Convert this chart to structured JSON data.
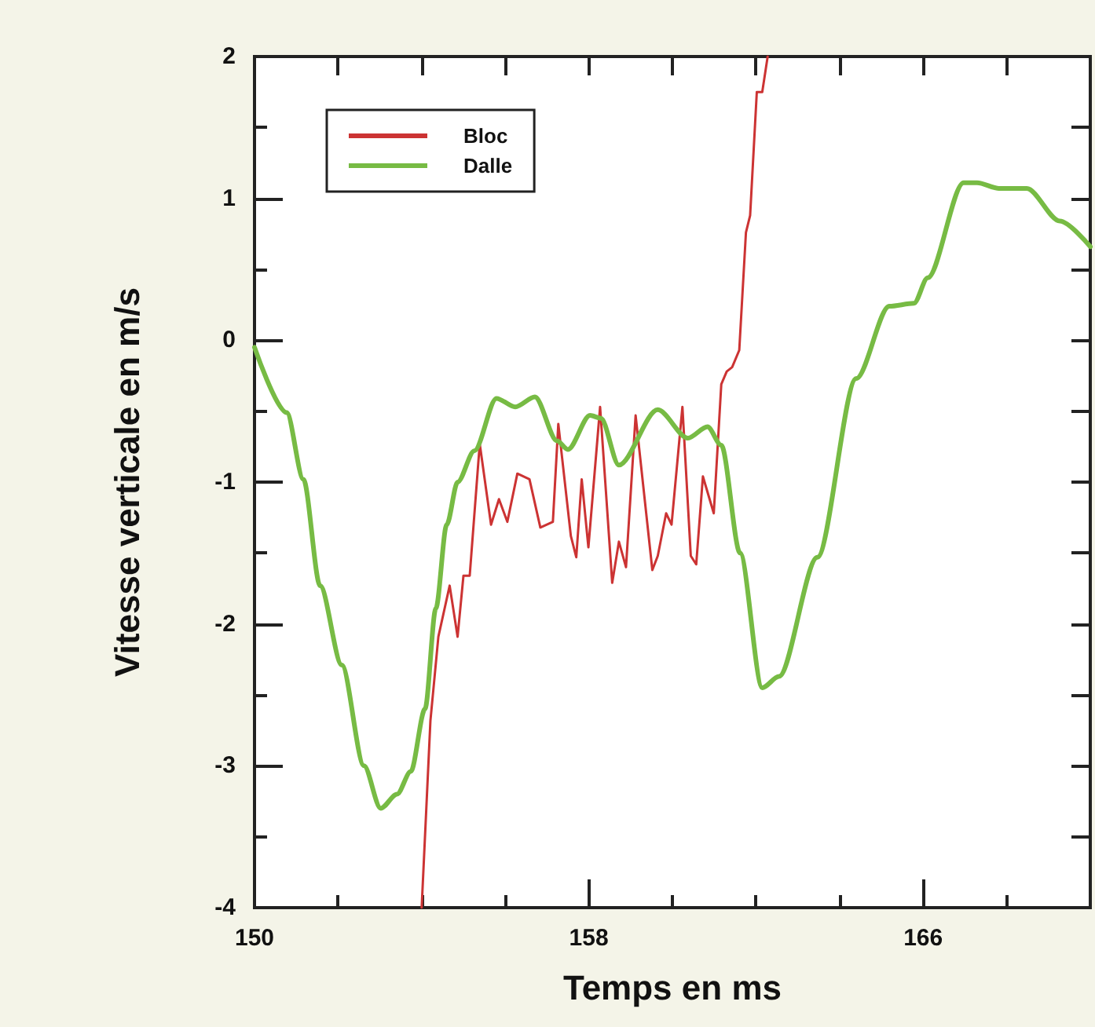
{
  "chart_data": {
    "type": "line",
    "xlabel": "Temps en ms",
    "ylabel": "Vitesse verticale en m/s",
    "xlim": [
      150,
      170
    ],
    "xticks": [
      150,
      {
        "value": 152,
        "label": null
      },
      {
        "value": 154,
        "label": null
      },
      {
        "value": 156,
        "label": null
      },
      158,
      {
        "value": 160,
        "label": null
      },
      {
        "value": 162,
        "label": null
      },
      {
        "value": 164,
        "label": null
      },
      166,
      {
        "value": 168,
        "label": null
      },
      {
        "value": 170,
        "label": null
      }
    ],
    "ylim": [
      -4,
      2
    ],
    "yticks": [
      -4,
      {
        "value": -3.5,
        "label": null
      },
      -3,
      {
        "value": -2.5,
        "label": null
      },
      -2,
      {
        "value": -1.5,
        "label": null
      },
      -1,
      {
        "value": -0.5,
        "label": null
      },
      0,
      {
        "value": 0.5,
        "label": null
      },
      1,
      {
        "value": 1.5,
        "label": null
      },
      2
    ],
    "grid": false,
    "legend": "top left",
    "marker": "none",
    "line_style": "solid",
    "series": [
      {
        "name": "Bloc",
        "color": "#cc3333",
        "x": [
          154.0,
          154.21,
          154.4,
          154.67,
          154.86,
          155.0,
          155.15,
          155.39,
          155.66,
          155.85,
          156.05,
          156.29,
          156.58,
          156.84,
          157.14,
          157.27,
          157.57,
          157.7,
          157.83,
          157.99,
          158.27,
          158.56,
          158.72,
          158.89,
          159.12,
          159.52,
          159.65,
          159.85,
          159.98,
          160.24,
          160.44,
          160.57,
          160.73,
          160.99,
          161.17,
          161.3,
          161.43,
          161.6,
          161.76,
          161.86,
          162.02,
          162.15,
          162.28
        ],
        "values": [
          -4,
          -2.68,
          -2.09,
          -1.73,
          -2.09,
          -1.66,
          -1.66,
          -0.73,
          -1.3,
          -1.12,
          -1.28,
          -0.94,
          -0.98,
          -1.32,
          -1.28,
          -0.59,
          -1.38,
          -1.53,
          -0.98,
          -1.46,
          -0.47,
          -1.71,
          -1.42,
          -1.6,
          -0.53,
          -1.62,
          -1.52,
          -1.22,
          -1.3,
          -0.47,
          -1.52,
          -1.58,
          -0.96,
          -1.22,
          -0.31,
          -0.22,
          -0.19,
          -0.07,
          0.76,
          0.88,
          1.75,
          1.75,
          2
        ]
      },
      {
        "name": "Dalle",
        "color": "#77bb44",
        "x": [
          150.0,
          150.77,
          151.17,
          151.57,
          152.09,
          152.62,
          153.02,
          153.41,
          153.74,
          154.08,
          154.34,
          154.6,
          154.86,
          155.26,
          155.79,
          156.24,
          156.71,
          157.24,
          157.5,
          158.03,
          158.29,
          158.72,
          159.65,
          160.37,
          160.84,
          161.17,
          161.62,
          162.15,
          162.55,
          163.47,
          164.4,
          165.19,
          165.78,
          166.11,
          166.97,
          167.29,
          167.82,
          168.48,
          169.27,
          170.0
        ],
        "values": [
          -0.05,
          -0.51,
          -0.98,
          -1.73,
          -2.29,
          -3.0,
          -3.3,
          -3.2,
          -3.04,
          -2.6,
          -1.89,
          -1.3,
          -1.0,
          -0.78,
          -0.41,
          -0.47,
          -0.4,
          -0.71,
          -0.77,
          -0.53,
          -0.55,
          -0.88,
          -0.49,
          -0.69,
          -0.61,
          -0.74,
          -1.5,
          -2.45,
          -2.37,
          -1.53,
          -0.27,
          0.24,
          0.26,
          0.44,
          1.11,
          1.11,
          1.07,
          1.07,
          0.84,
          0.66
        ]
      }
    ]
  }
}
